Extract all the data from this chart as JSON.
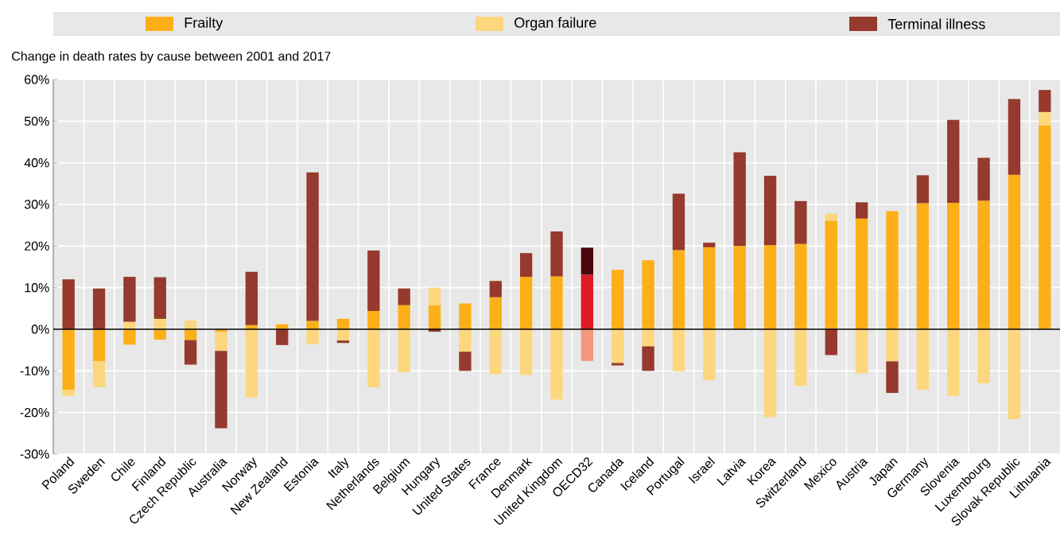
{
  "chart_data": {
    "type": "bar",
    "stacked": true,
    "ylabel": "Change in death rates by cause between 2001 and 2017",
    "categories": [
      "Poland",
      "Sweden",
      "Chile",
      "Finland",
      "Czech Republic",
      "Australia",
      "Norway",
      "New Zealand",
      "Estonia",
      "Italy",
      "Netherlands",
      "Belgium",
      "Hungary",
      "United States",
      "France",
      "Denmark",
      "United Kingdom",
      "OECD32",
      "Canada",
      "Iceland",
      "Portugal",
      "Israel",
      "Latvia",
      "Korea",
      "Switzerland",
      "Mexico",
      "Austria",
      "Japan",
      "Germany",
      "Slovenia",
      "Luxembourg",
      "Slovak Republic",
      "Lithuania"
    ],
    "series": [
      {
        "name": "Frailty",
        "color": "#fcaf17",
        "colors": [
          "#fcaf17",
          "#fcaf17",
          "#fcaf17",
          "#fcaf17",
          "#fcaf17",
          "#fcaf17",
          "#fcaf17",
          "#fcaf17",
          "#fcaf17",
          "#fcaf17",
          "#fcaf17",
          "#fcaf17",
          "#fcaf17",
          "#fcaf17",
          "#fcaf17",
          "#fcaf17",
          "#fcaf17",
          "#dd1c22",
          "#fcaf17",
          "#fcaf17",
          "#fcaf17",
          "#fcaf17",
          "#fcaf17",
          "#fcaf17",
          "#fcaf17",
          "#fcaf17",
          "#fcaf17",
          "#fcaf17",
          "#fcaf17",
          "#fcaf17",
          "#fcaf17",
          "#fcaf17",
          "#fcaf17"
        ],
        "values": [
          -14.5,
          -7.7,
          -3.7,
          -2.5,
          -2.6,
          -0.6,
          1.0,
          1.2,
          2.0,
          2.5,
          4.4,
          5.8,
          5.8,
          6.2,
          7.7,
          12.6,
          12.7,
          13.1,
          14.3,
          16.6,
          19.0,
          19.7,
          20.0,
          20.2,
          20.5,
          26.1,
          26.6,
          28.4,
          30.3,
          30.4,
          30.9,
          37.1,
          49.0
        ]
      },
      {
        "name": "Organ failure",
        "color": "#fdd77d",
        "colors": [
          "#fdd77d",
          "#fdd77d",
          "#fdd77d",
          "#fdd77d",
          "#fdd77d",
          "#fdd77d",
          "#fdd77d",
          "#fdd77d",
          "#fdd77d",
          "#fdd77d",
          "#fdd77d",
          "#fdd77d",
          "#fdd77d",
          "#fdd77d",
          "#fdd77d",
          "#fdd77d",
          "#fdd77d",
          "#f4977a",
          "#fdd77d",
          "#fdd77d",
          "#fdd77d",
          "#fdd77d",
          "#fdd77d",
          "#fdd77d",
          "#fdd77d",
          "#fdd77d",
          "#fdd77d",
          "#fdd77d",
          "#fdd77d",
          "#fdd77d",
          "#fdd77d",
          "#fdd77d",
          "#fdd77d"
        ],
        "values": [
          -1.5,
          -6.2,
          1.8,
          2.5,
          2.1,
          -4.6,
          -16.4,
          null,
          -3.6,
          -2.7,
          -13.9,
          -10.3,
          4.2,
          -5.4,
          -10.8,
          -11.0,
          -16.9,
          -7.6,
          -8.1,
          -4.1,
          -10.1,
          -12.2,
          null,
          -21.1,
          -13.6,
          1.7,
          -10.6,
          -7.7,
          -14.5,
          -16.0,
          -13.0,
          -21.6,
          3.2
        ]
      },
      {
        "name": "Terminal illness",
        "color": "#953a2d",
        "colors": [
          "#953a2d",
          "#953a2d",
          "#953a2d",
          "#953a2d",
          "#953a2d",
          "#953a2d",
          "#953a2d",
          "#953a2d",
          "#953a2d",
          "#953a2d",
          "#953a2d",
          "#953a2d",
          "#953a2d",
          "#953a2d",
          "#953a2d",
          "#953a2d",
          "#953a2d",
          "#4a0709",
          "#953a2d",
          "#953a2d",
          "#953a2d",
          "#953a2d",
          "#953a2d",
          "#953a2d",
          "#953a2d",
          "#953a2d",
          "#953a2d",
          "#953a2d",
          "#953a2d",
          "#953a2d",
          "#953a2d",
          "#953a2d",
          "#953a2d"
        ],
        "values": [
          12.0,
          9.8,
          10.8,
          10.0,
          -5.9,
          -18.6,
          12.8,
          -3.8,
          35.7,
          -0.6,
          14.5,
          4.0,
          -0.6,
          -4.6,
          3.9,
          5.7,
          10.8,
          6.5,
          -0.6,
          -5.9,
          13.6,
          1.1,
          22.5,
          16.7,
          10.3,
          -6.2,
          3.9,
          -7.6,
          6.7,
          19.9,
          10.3,
          18.2,
          5.3
        ]
      }
    ],
    "ylim": [
      -30,
      60
    ],
    "yticks": [
      {
        "value": -30,
        "label": "-30%"
      },
      {
        "value": -20,
        "label": "-20%"
      },
      {
        "value": -10,
        "label": "-10%"
      },
      {
        "value": 0,
        "label": "0%"
      },
      {
        "value": 10,
        "label": "10%"
      },
      {
        "value": 20,
        "label": "20%"
      },
      {
        "value": 30,
        "label": "30%"
      },
      {
        "value": 40,
        "label": "40%"
      },
      {
        "value": 50,
        "label": "50%"
      },
      {
        "value": 60,
        "label": "60%"
      }
    ],
    "grid": true,
    "legend": "top"
  }
}
